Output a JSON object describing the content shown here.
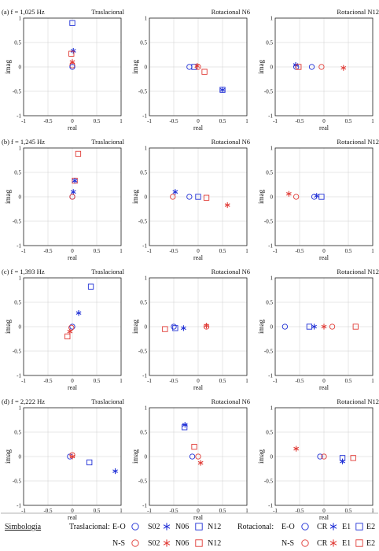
{
  "colors": {
    "blue": "#1f2fd6",
    "red": "#e03a35",
    "axis": "#222222",
    "grid": "#cfcfcf"
  },
  "common_axes": {
    "xlabel": "real",
    "ylabel": "imag",
    "xlim": [
      -1,
      1
    ],
    "ylim": [
      -1,
      1
    ],
    "xticks": [
      "-1",
      "-0.5",
      "0",
      "0.5",
      "1"
    ],
    "yticks": [
      "-1",
      "-0.5",
      "0",
      "0.5",
      "1"
    ],
    "grid": true
  },
  "rows": [
    {
      "freq_label": "(a) f = 1,025 Hz"
    },
    {
      "freq_label": "(b) f = 1,245 Hz"
    },
    {
      "freq_label": "(c) f = 1,393 Hz"
    },
    {
      "freq_label": "(d) f = 2,222 Hz"
    }
  ],
  "panel_titles": [
    "Traslacional",
    "Rotacional N6",
    "Rotacional N12"
  ],
  "legend": {
    "title": "Simbología",
    "group1_label": "Traslacional:",
    "group2_label": "Rotacional:",
    "eo": "E-O",
    "ns": "N-S",
    "trans_items": [
      "S02",
      "N06",
      "N12"
    ],
    "rot_items": [
      "CR",
      "E1",
      "E2"
    ]
  },
  "chart_data": [
    {
      "type": "scatter",
      "title": "Traslacional",
      "subtitle": "(a) f = 1,025 Hz",
      "points": [
        {
          "m": "square",
          "c": "blue",
          "x": 0.0,
          "y": 0.9
        },
        {
          "m": "star",
          "c": "blue",
          "x": 0.02,
          "y": 0.33
        },
        {
          "m": "square",
          "c": "red",
          "x": -0.02,
          "y": 0.27
        },
        {
          "m": "star",
          "c": "red",
          "x": 0.0,
          "y": 0.1
        },
        {
          "m": "circle",
          "c": "red",
          "x": 0.0,
          "y": 0.03
        },
        {
          "m": "circle",
          "c": "blue",
          "x": 0.0,
          "y": 0.0
        }
      ]
    },
    {
      "type": "scatter",
      "title": "Rotacional N6",
      "points": [
        {
          "m": "circle",
          "c": "blue",
          "x": -0.18,
          "y": 0.0
        },
        {
          "m": "square",
          "c": "blue",
          "x": -0.08,
          "y": 0.0
        },
        {
          "m": "star",
          "c": "red",
          "x": -0.02,
          "y": 0.02
        },
        {
          "m": "circle",
          "c": "red",
          "x": 0.0,
          "y": 0.0
        },
        {
          "m": "square",
          "c": "red",
          "x": 0.13,
          "y": -0.1
        },
        {
          "m": "square",
          "c": "blue",
          "x": 0.5,
          "y": -0.47
        },
        {
          "m": "star",
          "c": "blue",
          "x": 0.5,
          "y": -0.47
        }
      ]
    },
    {
      "type": "scatter",
      "title": "Rotacional N12",
      "points": [
        {
          "m": "star",
          "c": "blue",
          "x": -0.58,
          "y": 0.04
        },
        {
          "m": "circle",
          "c": "blue",
          "x": -0.57,
          "y": 0.0
        },
        {
          "m": "square",
          "c": "red",
          "x": -0.52,
          "y": 0.0
        },
        {
          "m": "circle",
          "c": "blue",
          "x": -0.25,
          "y": 0.0
        },
        {
          "m": "circle",
          "c": "red",
          "x": -0.05,
          "y": 0.0
        },
        {
          "m": "star",
          "c": "red",
          "x": 0.4,
          "y": -0.02
        }
      ]
    },
    {
      "type": "scatter",
      "title": "Traslacional",
      "subtitle": "(b) f = 1,245 Hz",
      "points": [
        {
          "m": "square",
          "c": "red",
          "x": 0.12,
          "y": 0.88
        },
        {
          "m": "square",
          "c": "red",
          "x": 0.05,
          "y": 0.33
        },
        {
          "m": "star",
          "c": "blue",
          "x": 0.05,
          "y": 0.33
        },
        {
          "m": "star",
          "c": "blue",
          "x": 0.02,
          "y": 0.1
        },
        {
          "m": "circle",
          "c": "blue",
          "x": 0.0,
          "y": 0.0
        },
        {
          "m": "circle",
          "c": "red",
          "x": 0.0,
          "y": 0.0
        }
      ]
    },
    {
      "type": "scatter",
      "title": "Rotacional N6",
      "points": [
        {
          "m": "star",
          "c": "blue",
          "x": -0.47,
          "y": 0.1
        },
        {
          "m": "circle",
          "c": "red",
          "x": -0.52,
          "y": 0.0
        },
        {
          "m": "circle",
          "c": "blue",
          "x": -0.18,
          "y": 0.0
        },
        {
          "m": "square",
          "c": "blue",
          "x": 0.0,
          "y": 0.0
        },
        {
          "m": "square",
          "c": "red",
          "x": 0.17,
          "y": -0.02
        },
        {
          "m": "star",
          "c": "red",
          "x": 0.6,
          "y": -0.17
        }
      ]
    },
    {
      "type": "scatter",
      "title": "Rotacional N12",
      "points": [
        {
          "m": "star",
          "c": "red",
          "x": -0.72,
          "y": 0.06
        },
        {
          "m": "circle",
          "c": "red",
          "x": -0.57,
          "y": 0.0
        },
        {
          "m": "circle",
          "c": "blue",
          "x": -0.2,
          "y": 0.0
        },
        {
          "m": "star",
          "c": "blue",
          "x": -0.15,
          "y": 0.02
        },
        {
          "m": "square",
          "c": "blue",
          "x": -0.05,
          "y": 0.0
        }
      ]
    },
    {
      "type": "scatter",
      "title": "Traslacional",
      "subtitle": "(c) f = 1,393 Hz",
      "points": [
        {
          "m": "square",
          "c": "blue",
          "x": 0.38,
          "y": 0.82
        },
        {
          "m": "star",
          "c": "blue",
          "x": 0.13,
          "y": 0.28
        },
        {
          "m": "circle",
          "c": "blue",
          "x": 0.0,
          "y": 0.0
        },
        {
          "m": "circle",
          "c": "red",
          "x": -0.02,
          "y": -0.02
        },
        {
          "m": "star",
          "c": "red",
          "x": -0.05,
          "y": -0.1
        },
        {
          "m": "square",
          "c": "red",
          "x": -0.1,
          "y": -0.2
        }
      ]
    },
    {
      "type": "scatter",
      "title": "Rotacional N6",
      "points": [
        {
          "m": "square",
          "c": "red",
          "x": -0.68,
          "y": -0.05
        },
        {
          "m": "circle",
          "c": "blue",
          "x": -0.5,
          "y": 0.0
        },
        {
          "m": "square",
          "c": "blue",
          "x": -0.47,
          "y": -0.03
        },
        {
          "m": "star",
          "c": "blue",
          "x": -0.3,
          "y": -0.03
        },
        {
          "m": "circle",
          "c": "red",
          "x": 0.17,
          "y": 0.0
        },
        {
          "m": "star",
          "c": "red",
          "x": 0.17,
          "y": 0.02
        }
      ]
    },
    {
      "type": "scatter",
      "title": "Rotacional N12",
      "points": [
        {
          "m": "circle",
          "c": "blue",
          "x": -0.8,
          "y": 0.0
        },
        {
          "m": "square",
          "c": "blue",
          "x": -0.3,
          "y": 0.0
        },
        {
          "m": "star",
          "c": "blue",
          "x": -0.2,
          "y": 0.0
        },
        {
          "m": "star",
          "c": "red",
          "x": 0.0,
          "y": 0.0
        },
        {
          "m": "circle",
          "c": "red",
          "x": 0.17,
          "y": 0.0
        },
        {
          "m": "square",
          "c": "red",
          "x": 0.65,
          "y": 0.0
        }
      ]
    },
    {
      "type": "scatter",
      "title": "Traslacional",
      "subtitle": "(d) f = 2,222 Hz",
      "points": [
        {
          "m": "circle",
          "c": "blue",
          "x": -0.05,
          "y": 0.0
        },
        {
          "m": "circle",
          "c": "red",
          "x": 0.0,
          "y": 0.03
        },
        {
          "m": "star",
          "c": "red",
          "x": 0.0,
          "y": 0.0
        },
        {
          "m": "square",
          "c": "blue",
          "x": 0.35,
          "y": -0.12
        },
        {
          "m": "star",
          "c": "blue",
          "x": 0.88,
          "y": -0.3
        }
      ]
    },
    {
      "type": "scatter",
      "title": "Rotacional N6",
      "points": [
        {
          "m": "star",
          "c": "blue",
          "x": -0.27,
          "y": 0.65
        },
        {
          "m": "square",
          "c": "blue",
          "x": -0.28,
          "y": 0.6
        },
        {
          "m": "square",
          "c": "red",
          "x": -0.08,
          "y": 0.2
        },
        {
          "m": "circle",
          "c": "blue",
          "x": -0.12,
          "y": 0.0
        },
        {
          "m": "circle",
          "c": "red",
          "x": 0.0,
          "y": 0.0
        },
        {
          "m": "star",
          "c": "red",
          "x": 0.05,
          "y": -0.13
        }
      ]
    },
    {
      "type": "scatter",
      "title": "Rotacional N12",
      "points": [
        {
          "m": "star",
          "c": "red",
          "x": -0.57,
          "y": 0.16
        },
        {
          "m": "circle",
          "c": "blue",
          "x": -0.08,
          "y": 0.0
        },
        {
          "m": "circle",
          "c": "red",
          "x": 0.0,
          "y": 0.0
        },
        {
          "m": "square",
          "c": "blue",
          "x": 0.38,
          "y": -0.03
        },
        {
          "m": "star",
          "c": "blue",
          "x": 0.38,
          "y": -0.1
        },
        {
          "m": "square",
          "c": "red",
          "x": 0.6,
          "y": -0.03
        }
      ]
    }
  ]
}
